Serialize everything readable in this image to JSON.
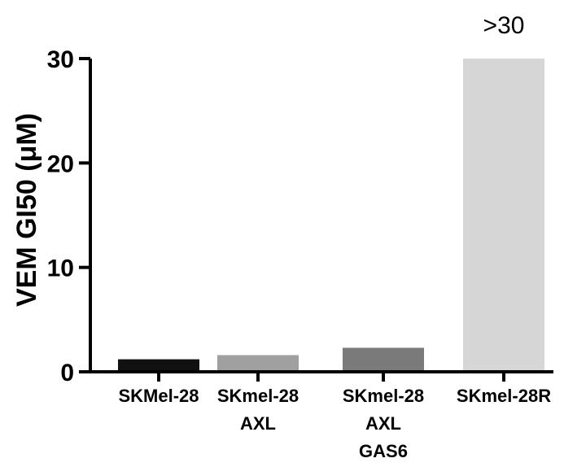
{
  "chart_data": {
    "type": "bar",
    "title": "",
    "xlabel": "",
    "ylabel": "VEM GI50 (μM)",
    "ylim": [
      0,
      30
    ],
    "yticks": [
      0,
      10,
      20,
      30
    ],
    "grid": false,
    "categories": [
      [
        "SKMel-28"
      ],
      [
        "SKmel-28",
        "AXL"
      ],
      [
        "SKmel-28",
        "AXL",
        "GAS6"
      ],
      [
        "SKmel-28R"
      ]
    ],
    "values": [
      1.2,
      1.6,
      2.3,
      30
    ],
    "colors": [
      "#111111",
      "#a0a0a0",
      "#7a7a7a",
      "#d6d6d6"
    ],
    "annotations": [
      {
        "category_index": 3,
        "text": ">30"
      }
    ]
  }
}
